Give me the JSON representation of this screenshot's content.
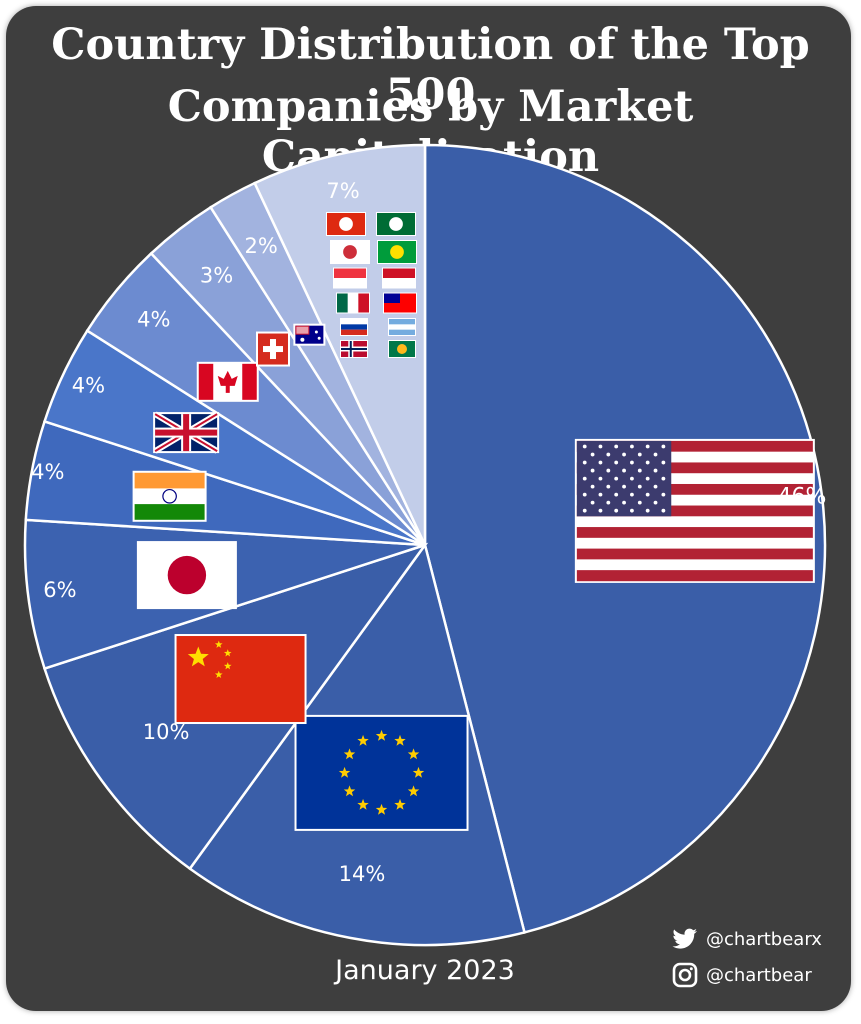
{
  "title_line1": "Country Distribution of the Top 500",
  "title_line2": "Companies by Market Capitalization",
  "date": "January 2023",
  "social": {
    "twitter_handle": "@chartbearx",
    "twitter_icon": "twitter-bird-icon",
    "instagram_handle": "@chartbear",
    "instagram_icon": "instagram-icon"
  },
  "colors": {
    "background": "#3e3e3e",
    "slice_dark": "#3a5ea8",
    "slice_borders": "#ffffff"
  },
  "chart_data": {
    "type": "pie",
    "start_angle_deg": 0,
    "direction": "clockwise",
    "slices": [
      {
        "label": "46%",
        "value": 46,
        "flag": "united-states-flag-icon",
        "color": "#3a5ea8"
      },
      {
        "label": "14%",
        "value": 14,
        "flag": "european-union-flag-icon",
        "color": "#3a5ea8"
      },
      {
        "label": "10%",
        "value": 10,
        "flag": "china-flag-icon",
        "color": "#3a5ea8"
      },
      {
        "label": "6%",
        "value": 6,
        "flag": "japan-flag-icon",
        "color": "#3c62b0"
      },
      {
        "label": "4%",
        "value": 4,
        "flag": "india-flag-icon",
        "color": "#3f69bd"
      },
      {
        "label": "4%",
        "value": 4,
        "flag": "united-kingdom-flag-icon",
        "color": "#4a76c9"
      },
      {
        "label": "4%",
        "value": 4,
        "flag": "canada-flag-icon",
        "color": "#6c8bd0"
      },
      {
        "label": "3%",
        "value": 3,
        "flag": "switzerland-flag-icon",
        "color": "#8aa1d8"
      },
      {
        "label": "2%",
        "value": 2,
        "flag": "australia-flag-icon",
        "color": "#a2b3df"
      },
      {
        "label": "7%",
        "value": 7,
        "flag": "others-flags-icon",
        "color": "#c2cde9"
      }
    ]
  }
}
